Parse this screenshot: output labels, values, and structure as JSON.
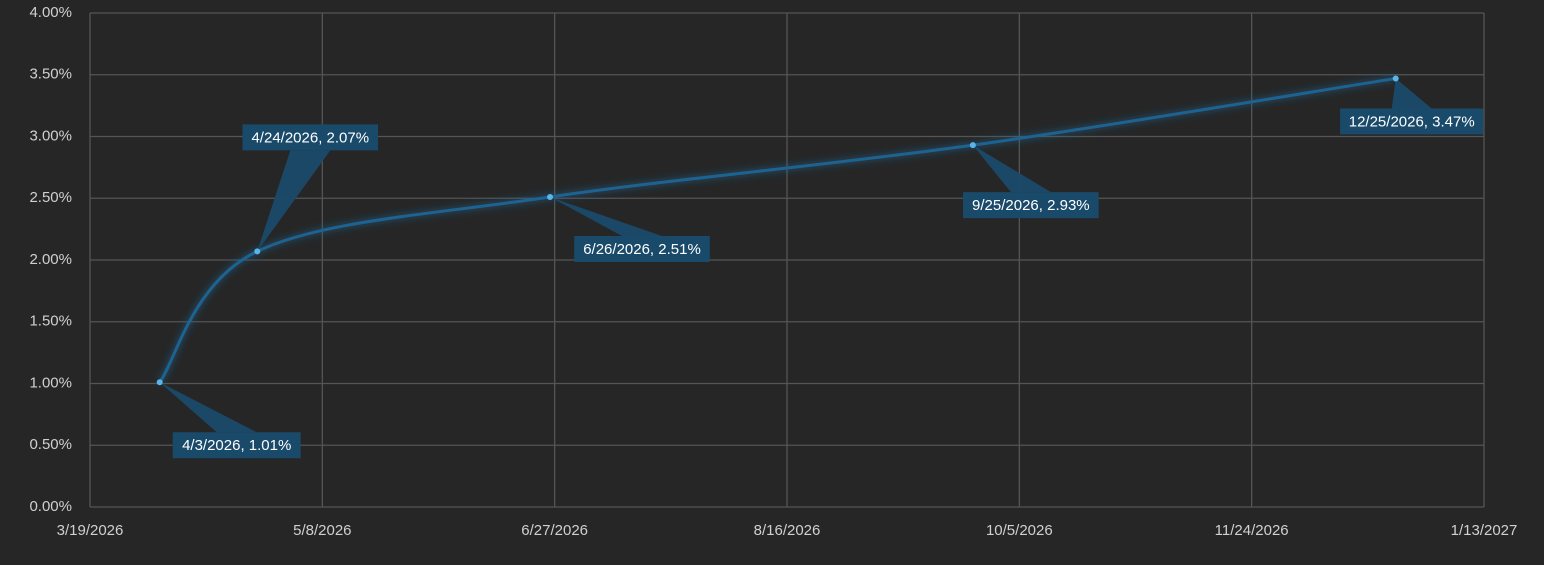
{
  "chart_data": {
    "type": "line",
    "x": [
      "4/3/2026",
      "4/24/2026",
      "6/26/2026",
      "9/25/2026",
      "12/25/2026"
    ],
    "values": [
      1.01,
      2.07,
      2.51,
      2.93,
      3.47
    ],
    "value_labels": [
      "4/3/2026, 1.01%",
      "4/24/2026, 2.07%",
      "6/26/2026, 2.51%",
      "9/25/2026, 2.93%",
      "12/25/2026, 3.47%"
    ],
    "color": "#1f6391",
    "xlim": [
      "3/19/2026",
      "1/13/2027"
    ],
    "xticks": [
      "3/19/2026",
      "5/8/2026",
      "6/27/2026",
      "8/16/2026",
      "10/5/2026",
      "11/24/2026",
      "1/13/2027"
    ],
    "ylim": [
      0,
      4
    ],
    "yticks": [
      {
        "value": 0,
        "label": "0.00%"
      },
      {
        "value": 0.5,
        "label": "0.50%"
      },
      {
        "value": 1,
        "label": "1.00%"
      },
      {
        "value": 1.5,
        "label": "1.50%"
      },
      {
        "value": 2,
        "label": "2.00%"
      },
      {
        "value": 2.5,
        "label": "2.50%"
      },
      {
        "value": 3,
        "label": "3.00%"
      },
      {
        "value": 3.5,
        "label": "3.50%"
      },
      {
        "value": 4,
        "label": "4.00%"
      }
    ],
    "grid": true
  }
}
